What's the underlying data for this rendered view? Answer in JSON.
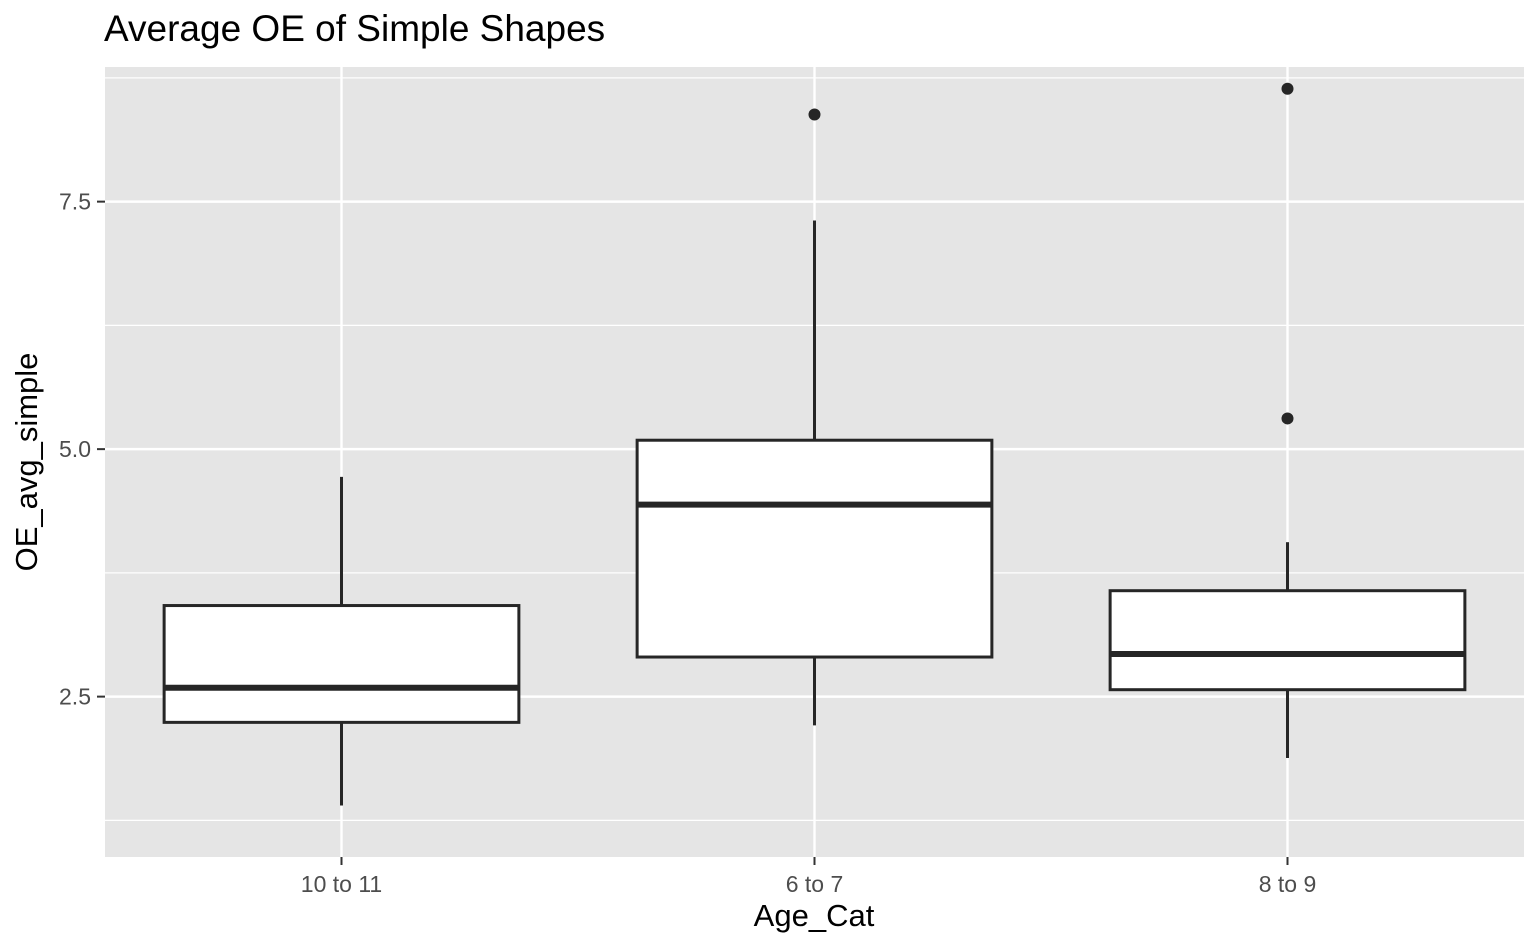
{
  "chart_data": {
    "type": "box",
    "title": "Average OE of Simple Shapes",
    "xlabel": "Age_Cat",
    "ylabel": "OE_avg_simple",
    "categories": [
      "10 to 11",
      "6 to 7",
      "8 to 9"
    ],
    "yticks": [
      2.5,
      5.0,
      7.5
    ],
    "ytick_labels": [
      "2.5",
      "5.0",
      "7.5"
    ],
    "ylim": [
      0.88,
      8.86
    ],
    "grid": true,
    "boxes": [
      {
        "category": "10 to 11",
        "whisker_low": 1.4,
        "q1": 2.24,
        "median": 2.59,
        "q3": 3.42,
        "whisker_high": 4.72,
        "outliers": []
      },
      {
        "category": "6 to 7",
        "whisker_low": 2.21,
        "q1": 2.9,
        "median": 4.44,
        "q3": 5.09,
        "whisker_high": 7.31,
        "outliers": [
          8.38
        ]
      },
      {
        "category": "8 to 9",
        "whisker_low": 1.88,
        "q1": 2.57,
        "median": 2.93,
        "q3": 3.57,
        "whisker_high": 4.06,
        "outliers": [
          5.31,
          8.64
        ]
      }
    ],
    "colors": {
      "panel": "#e5e5e5",
      "grid": "#ffffff",
      "box_fill": "#ffffff",
      "box_line": "#262626",
      "tick_text": "#4d4d4d"
    }
  }
}
